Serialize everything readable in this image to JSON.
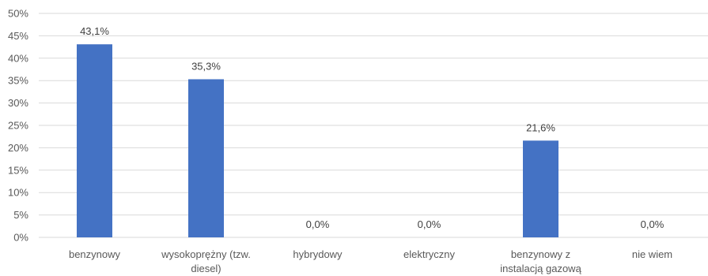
{
  "chart_data": {
    "type": "bar",
    "categories": [
      [
        "benzynowy"
      ],
      [
        "wysokoprężny (tzw.",
        "diesel)"
      ],
      [
        "hybrydowy"
      ],
      [
        "elektryczny"
      ],
      [
        "benzynowy z",
        "instalacją gazową"
      ],
      [
        "nie wiem"
      ]
    ],
    "values": [
      43.1,
      35.3,
      0.0,
      0.0,
      21.6,
      0.0
    ],
    "data_labels": [
      "43,1%",
      "35,3%",
      "0,0%",
      "0,0%",
      "21,6%",
      "0,0%"
    ],
    "y_ticks": [
      "0%",
      "5%",
      "10%",
      "15%",
      "20%",
      "25%",
      "30%",
      "35%",
      "40%",
      "45%",
      "50%"
    ],
    "ylim": [
      0,
      50
    ],
    "grid": true,
    "legend": "none",
    "bar_color": "#4472C4",
    "grid_color": "#D9D9D9",
    "title": "",
    "xlabel": "",
    "ylabel": ""
  }
}
